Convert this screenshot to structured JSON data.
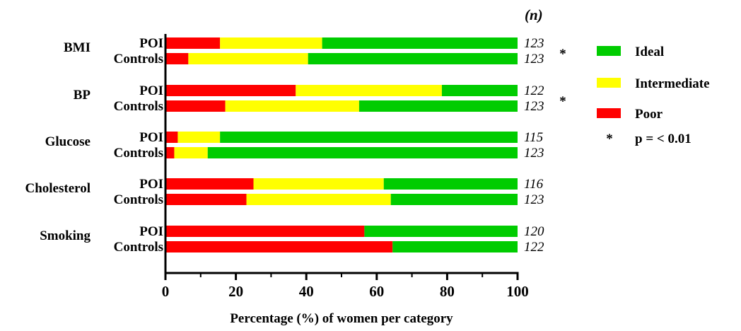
{
  "chart_data": {
    "type": "bar",
    "orientation": "horizontal",
    "stacked": true,
    "xlabel": "Percentage (%) of women per category",
    "xlim": [
      0,
      100
    ],
    "xticks": [
      "0",
      "20",
      "40",
      "60",
      "80",
      "100"
    ],
    "n_header": "(n)",
    "grid": false,
    "legend_position": "right",
    "legend": [
      {
        "name": "Ideal",
        "color": "#00cc00"
      },
      {
        "name": "Intermediate",
        "color": "#ffff00"
      },
      {
        "name": "Poor",
        "color": "#ff0000"
      }
    ],
    "significance": {
      "symbol": "*",
      "text": "p = < 0.01"
    },
    "categories": [
      {
        "name": "BMI",
        "star": "*",
        "groups": [
          {
            "label": "POI",
            "n": "123",
            "poor": 15.5,
            "intermediate": 29,
            "ideal": 55.5
          },
          {
            "label": "Controls",
            "n": "123",
            "poor": 6.5,
            "intermediate": 34,
            "ideal": 59.5
          }
        ]
      },
      {
        "name": "BP",
        "star": "*",
        "groups": [
          {
            "label": "POI",
            "n": "122",
            "poor": 37,
            "intermediate": 41.5,
            "ideal": 21.5
          },
          {
            "label": "Controls",
            "n": "123",
            "poor": 17,
            "intermediate": 38,
            "ideal": 45
          }
        ]
      },
      {
        "name": "Glucose",
        "star": "",
        "groups": [
          {
            "label": "POI",
            "n": "115",
            "poor": 3.5,
            "intermediate": 12,
            "ideal": 84.5
          },
          {
            "label": "Controls",
            "n": "123",
            "poor": 2.5,
            "intermediate": 9.5,
            "ideal": 88
          }
        ]
      },
      {
        "name": "Cholesterol",
        "star": "",
        "groups": [
          {
            "label": "POI",
            "n": "116",
            "poor": 25,
            "intermediate": 37,
            "ideal": 38
          },
          {
            "label": "Controls",
            "n": "123",
            "poor": 23,
            "intermediate": 41,
            "ideal": 36
          }
        ]
      },
      {
        "name": "Smoking",
        "star": "",
        "groups": [
          {
            "label": "POI",
            "n": "120",
            "poor": 56.5,
            "intermediate": 0,
            "ideal": 43.5
          },
          {
            "label": "Controls",
            "n": "122",
            "poor": 64.5,
            "intermediate": 0,
            "ideal": 35.5
          }
        ]
      }
    ]
  }
}
